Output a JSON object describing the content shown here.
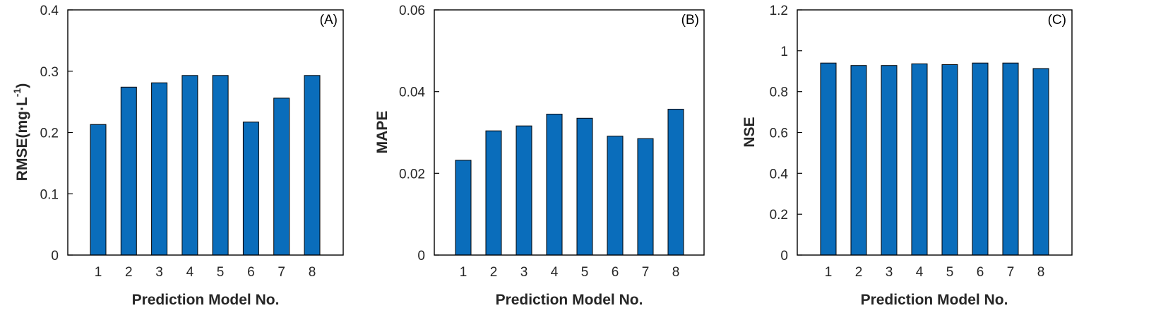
{
  "bar_color": "#0a6dbb",
  "bar_edge_color": "#000000",
  "chart_data": [
    {
      "type": "bar",
      "panel_tag": "(A)",
      "xlabel": "Prediction Model No.",
      "ylabel": "RMSE(mg·L-1)",
      "ylabel_parts": {
        "base": "RMSE(mg·L",
        "sup": "-1",
        "close": ")"
      },
      "categories": [
        "1",
        "2",
        "3",
        "4",
        "5",
        "6",
        "7",
        "8"
      ],
      "values": [
        0.213,
        0.274,
        0.281,
        0.293,
        0.293,
        0.217,
        0.256,
        0.293
      ],
      "ylim": [
        0,
        0.4
      ],
      "yticks": [
        0,
        0.1,
        0.2,
        0.3,
        0.4
      ],
      "ytick_labels": [
        "0",
        "0.1",
        "0.2",
        "0.3",
        "0.4"
      ],
      "grid": false
    },
    {
      "type": "bar",
      "panel_tag": "(B)",
      "xlabel": "Prediction Model No.",
      "ylabel": "MAPE",
      "categories": [
        "1",
        "2",
        "3",
        "4",
        "5",
        "6",
        "7",
        "8"
      ],
      "values": [
        0.0232,
        0.0304,
        0.0316,
        0.0345,
        0.0335,
        0.0291,
        0.0285,
        0.0357
      ],
      "ylim": [
        0,
        0.06
      ],
      "yticks": [
        0,
        0.02,
        0.04,
        0.06
      ],
      "ytick_labels": [
        "0",
        "0.02",
        "0.04",
        "0.06"
      ],
      "grid": false
    },
    {
      "type": "bar",
      "panel_tag": "(C)",
      "xlabel": "Prediction Model No.",
      "ylabel": "NSE",
      "categories": [
        "1",
        "2",
        "3",
        "4",
        "5",
        "6",
        "7",
        "8"
      ],
      "values": [
        0.94,
        0.928,
        0.928,
        0.936,
        0.932,
        0.94,
        0.94,
        0.913
      ],
      "ylim": [
        0,
        1.2
      ],
      "yticks": [
        0,
        0.2,
        0.4,
        0.6,
        0.8,
        1,
        1.2
      ],
      "ytick_labels": [
        "0",
        "0.2",
        "0.4",
        "0.6",
        "0.8",
        "1",
        "1.2"
      ],
      "grid": false
    }
  ]
}
